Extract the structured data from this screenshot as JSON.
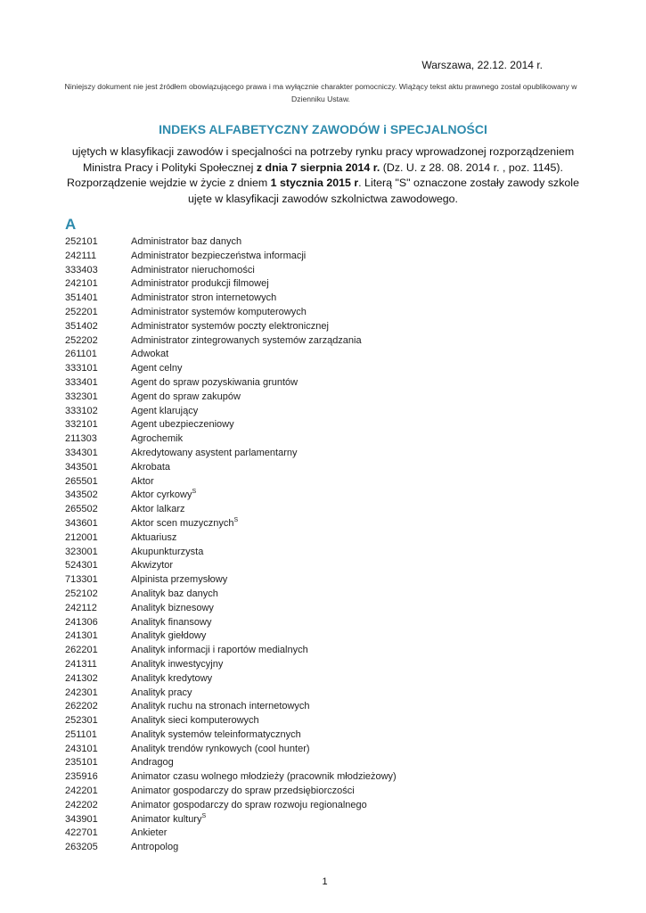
{
  "header": {
    "date": "Warszawa, 22.12. 2014 r.",
    "disclaimer": "Niniejszy dokument nie jest źródłem obowiązującego prawa i ma wyłącznie charakter pomocniczy. Wiążący tekst aktu prawnego został opublikowany w Dzienniku Ustaw.",
    "title": "INDEKS ALFABETYCZNY ZAWODÓW i SPECJALNOŚCI",
    "intro": {
      "p1": "ujętych w klasyfikacji zawodów i specjalności na potrzeby rynku pracy wprowadzonej rozporządzeniem Ministra Pracy i Polityki Społecznej ",
      "b1": "z dnia 7 sierpnia 2014 r.",
      "p2": " (Dz. U. z 28. 08. 2014 r. , poz. 1145). Rozporządzenie wejdzie w życie z dniem ",
      "b2": "1 stycznia 2015 r",
      "p3": ". Literą \"S\" oznaczone zostały zawody szkole ujęte w klasyfikacji zawodów szkolnictwa zawodowego."
    },
    "accent_color": "#2e8bad"
  },
  "section": {
    "letter": "A",
    "rows": [
      {
        "code": "252101",
        "name": "Administrator baz danych"
      },
      {
        "code": "242111",
        "name": "Administrator bezpieczeństwa informacji"
      },
      {
        "code": "333403",
        "name": "Administrator nieruchomości"
      },
      {
        "code": "242101",
        "name": "Administrator produkcji filmowej"
      },
      {
        "code": "351401",
        "name": "Administrator stron internetowych"
      },
      {
        "code": "252201",
        "name": "Administrator systemów komputerowych"
      },
      {
        "code": "351402",
        "name": "Administrator systemów poczty elektronicznej"
      },
      {
        "code": "252202",
        "name": "Administrator zintegrowanych systemów zarządzania"
      },
      {
        "code": "261101",
        "name": "Adwokat"
      },
      {
        "code": "333101",
        "name": "Agent celny"
      },
      {
        "code": "333401",
        "name": "Agent do spraw pozyskiwania gruntów"
      },
      {
        "code": "332301",
        "name": "Agent do spraw zakupów"
      },
      {
        "code": "333102",
        "name": "Agent klarujący"
      },
      {
        "code": "332101",
        "name": "Agent ubezpieczeniowy"
      },
      {
        "code": "211303",
        "name": "Agrochemik"
      },
      {
        "code": "334301",
        "name": "Akredytowany asystent parlamentarny"
      },
      {
        "code": "343501",
        "name": "Akrobata"
      },
      {
        "code": "265501",
        "name": "Aktor"
      },
      {
        "code": "343502",
        "name": "Aktor cyrkowy",
        "sup": "S"
      },
      {
        "code": "265502",
        "name": "Aktor lalkarz"
      },
      {
        "code": "343601",
        "name": "Aktor scen muzycznych",
        "sup": "S"
      },
      {
        "code": "212001",
        "name": "Aktuariusz"
      },
      {
        "code": "323001",
        "name": "Akupunkturzysta"
      },
      {
        "code": "524301",
        "name": "Akwizytor"
      },
      {
        "code": "713301",
        "name": "Alpinista przemysłowy"
      },
      {
        "code": "252102",
        "name": "Analityk baz danych"
      },
      {
        "code": "242112",
        "name": "Analityk biznesowy"
      },
      {
        "code": "241306",
        "name": "Analityk finansowy"
      },
      {
        "code": "241301",
        "name": "Analityk giełdowy"
      },
      {
        "code": "262201",
        "name": "Analityk informacji i raportów medialnych"
      },
      {
        "code": "241311",
        "name": "Analityk inwestycyjny"
      },
      {
        "code": "241302",
        "name": "Analityk kredytowy"
      },
      {
        "code": "242301",
        "name": "Analityk pracy"
      },
      {
        "code": "262202",
        "name": "Analityk ruchu na stronach internetowych"
      },
      {
        "code": "252301",
        "name": "Analityk sieci komputerowych"
      },
      {
        "code": "251101",
        "name": "Analityk systemów teleinformatycznych"
      },
      {
        "code": "243101",
        "name": "Analityk trendów rynkowych (cool hunter)"
      },
      {
        "code": "235101",
        "name": "Andragog"
      },
      {
        "code": "235916",
        "name": "Animator czasu wolnego młodzieży (pracownik młodzieżowy)"
      },
      {
        "code": "242201",
        "name": "Animator gospodarczy do spraw przedsiębiorczości"
      },
      {
        "code": "242202",
        "name": "Animator gospodarczy do spraw rozwoju regionalnego"
      },
      {
        "code": "343901",
        "name": "Animator kultury",
        "sup": "S"
      },
      {
        "code": "422701",
        "name": "Ankieter"
      },
      {
        "code": "263205",
        "name": "Antropolog"
      }
    ]
  },
  "footer": {
    "page_number": "1"
  }
}
